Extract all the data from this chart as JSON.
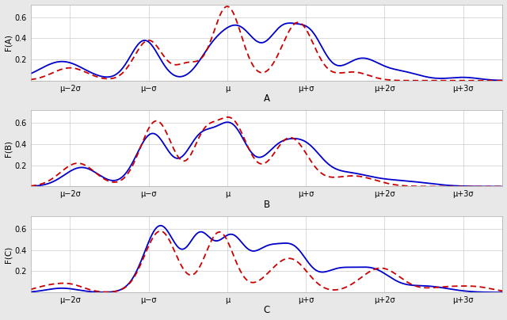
{
  "title_A": "A",
  "title_B": "B",
  "title_C": "C",
  "ylabel_A": "F(A)",
  "ylabel_B": "F(B)",
  "ylabel_C": "F(C)",
  "xtick_labels": [
    "μ−2σ",
    "μ−σ",
    "μ",
    "μ+σ",
    "μ+2σ",
    "μ+3σ"
  ],
  "yticks": [
    0.2,
    0.4,
    0.6
  ],
  "ylim": [
    0,
    0.72
  ],
  "xlim": [
    -2.5,
    3.5
  ],
  "blue_color": "#0000cc",
  "red_color": "#cc0000",
  "bg_color": "#e8e8e8",
  "plot_bg": "#ffffff",
  "line_width": 1.3
}
